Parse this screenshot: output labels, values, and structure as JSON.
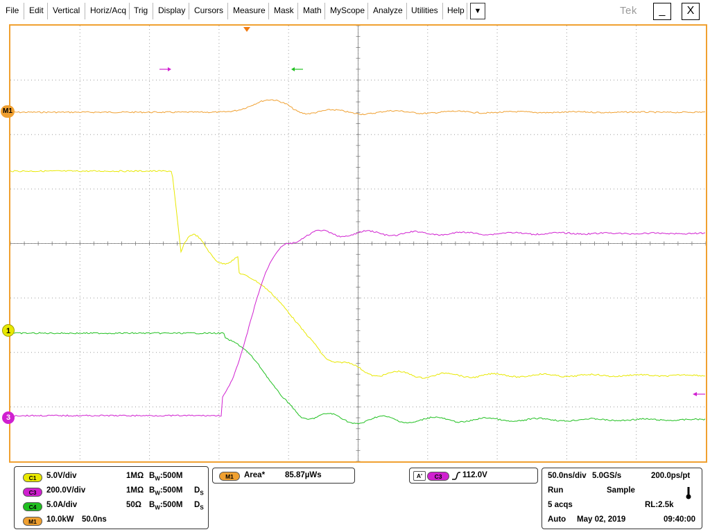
{
  "menu": {
    "items": [
      "File",
      "Edit",
      "Vertical",
      "Horiz/Acq",
      "Trig",
      "Display",
      "Cursors",
      "Measure",
      "Mask",
      "Math",
      "MyScope",
      "Analyze",
      "Utilities",
      "Help"
    ],
    "dropdown_icon": "▼",
    "logo": "Tek",
    "minimize": "_",
    "close": "X"
  },
  "screen": {
    "markers": {
      "m1": "M1",
      "ch1": "1",
      "ch3": "3"
    },
    "border_color": "#f0a030"
  },
  "colors": {
    "c1": "#e8e800",
    "c3": "#d020d0",
    "c4": "#20c020",
    "m1": "#f0a030"
  },
  "channels": [
    {
      "badge": "C1",
      "scale": "5.0V/div",
      "impedance": "1MΩ",
      "bw_label": "B",
      "bw_sub": "W",
      "bw_value": ":500M",
      "ds": ""
    },
    {
      "badge": "C3",
      "scale": "200.0V/div",
      "impedance": "1MΩ",
      "bw_label": "B",
      "bw_sub": "W",
      "bw_value": ":500M",
      "ds": "D"
    },
    {
      "badge": "C4",
      "scale": "5.0A/div",
      "impedance": "50Ω",
      "bw_label": "B",
      "bw_sub": "W",
      "bw_value": ":500M",
      "ds": "D"
    },
    {
      "badge": "M1",
      "scale": "10.0kW",
      "extra": "50.0ns"
    }
  ],
  "measurement": {
    "badge": "M1",
    "label": "Area*",
    "value": "85.87µWs"
  },
  "trigger": {
    "mode_badge": "A'",
    "source_badge": "C3",
    "slope_icon": "rising-edge-icon",
    "level": "112.0V"
  },
  "acquisition": {
    "timebase": "50.0ns/div",
    "sample_rate": "5.0GS/s",
    "resolution": "200.0ps/pt",
    "state": "Run",
    "mode": "Sample",
    "acqs": "5 acqs",
    "record_length": "RL:2.5k",
    "trigger_mode": "Auto",
    "date": "May 02, 2019",
    "time": "09:40:00"
  }
}
